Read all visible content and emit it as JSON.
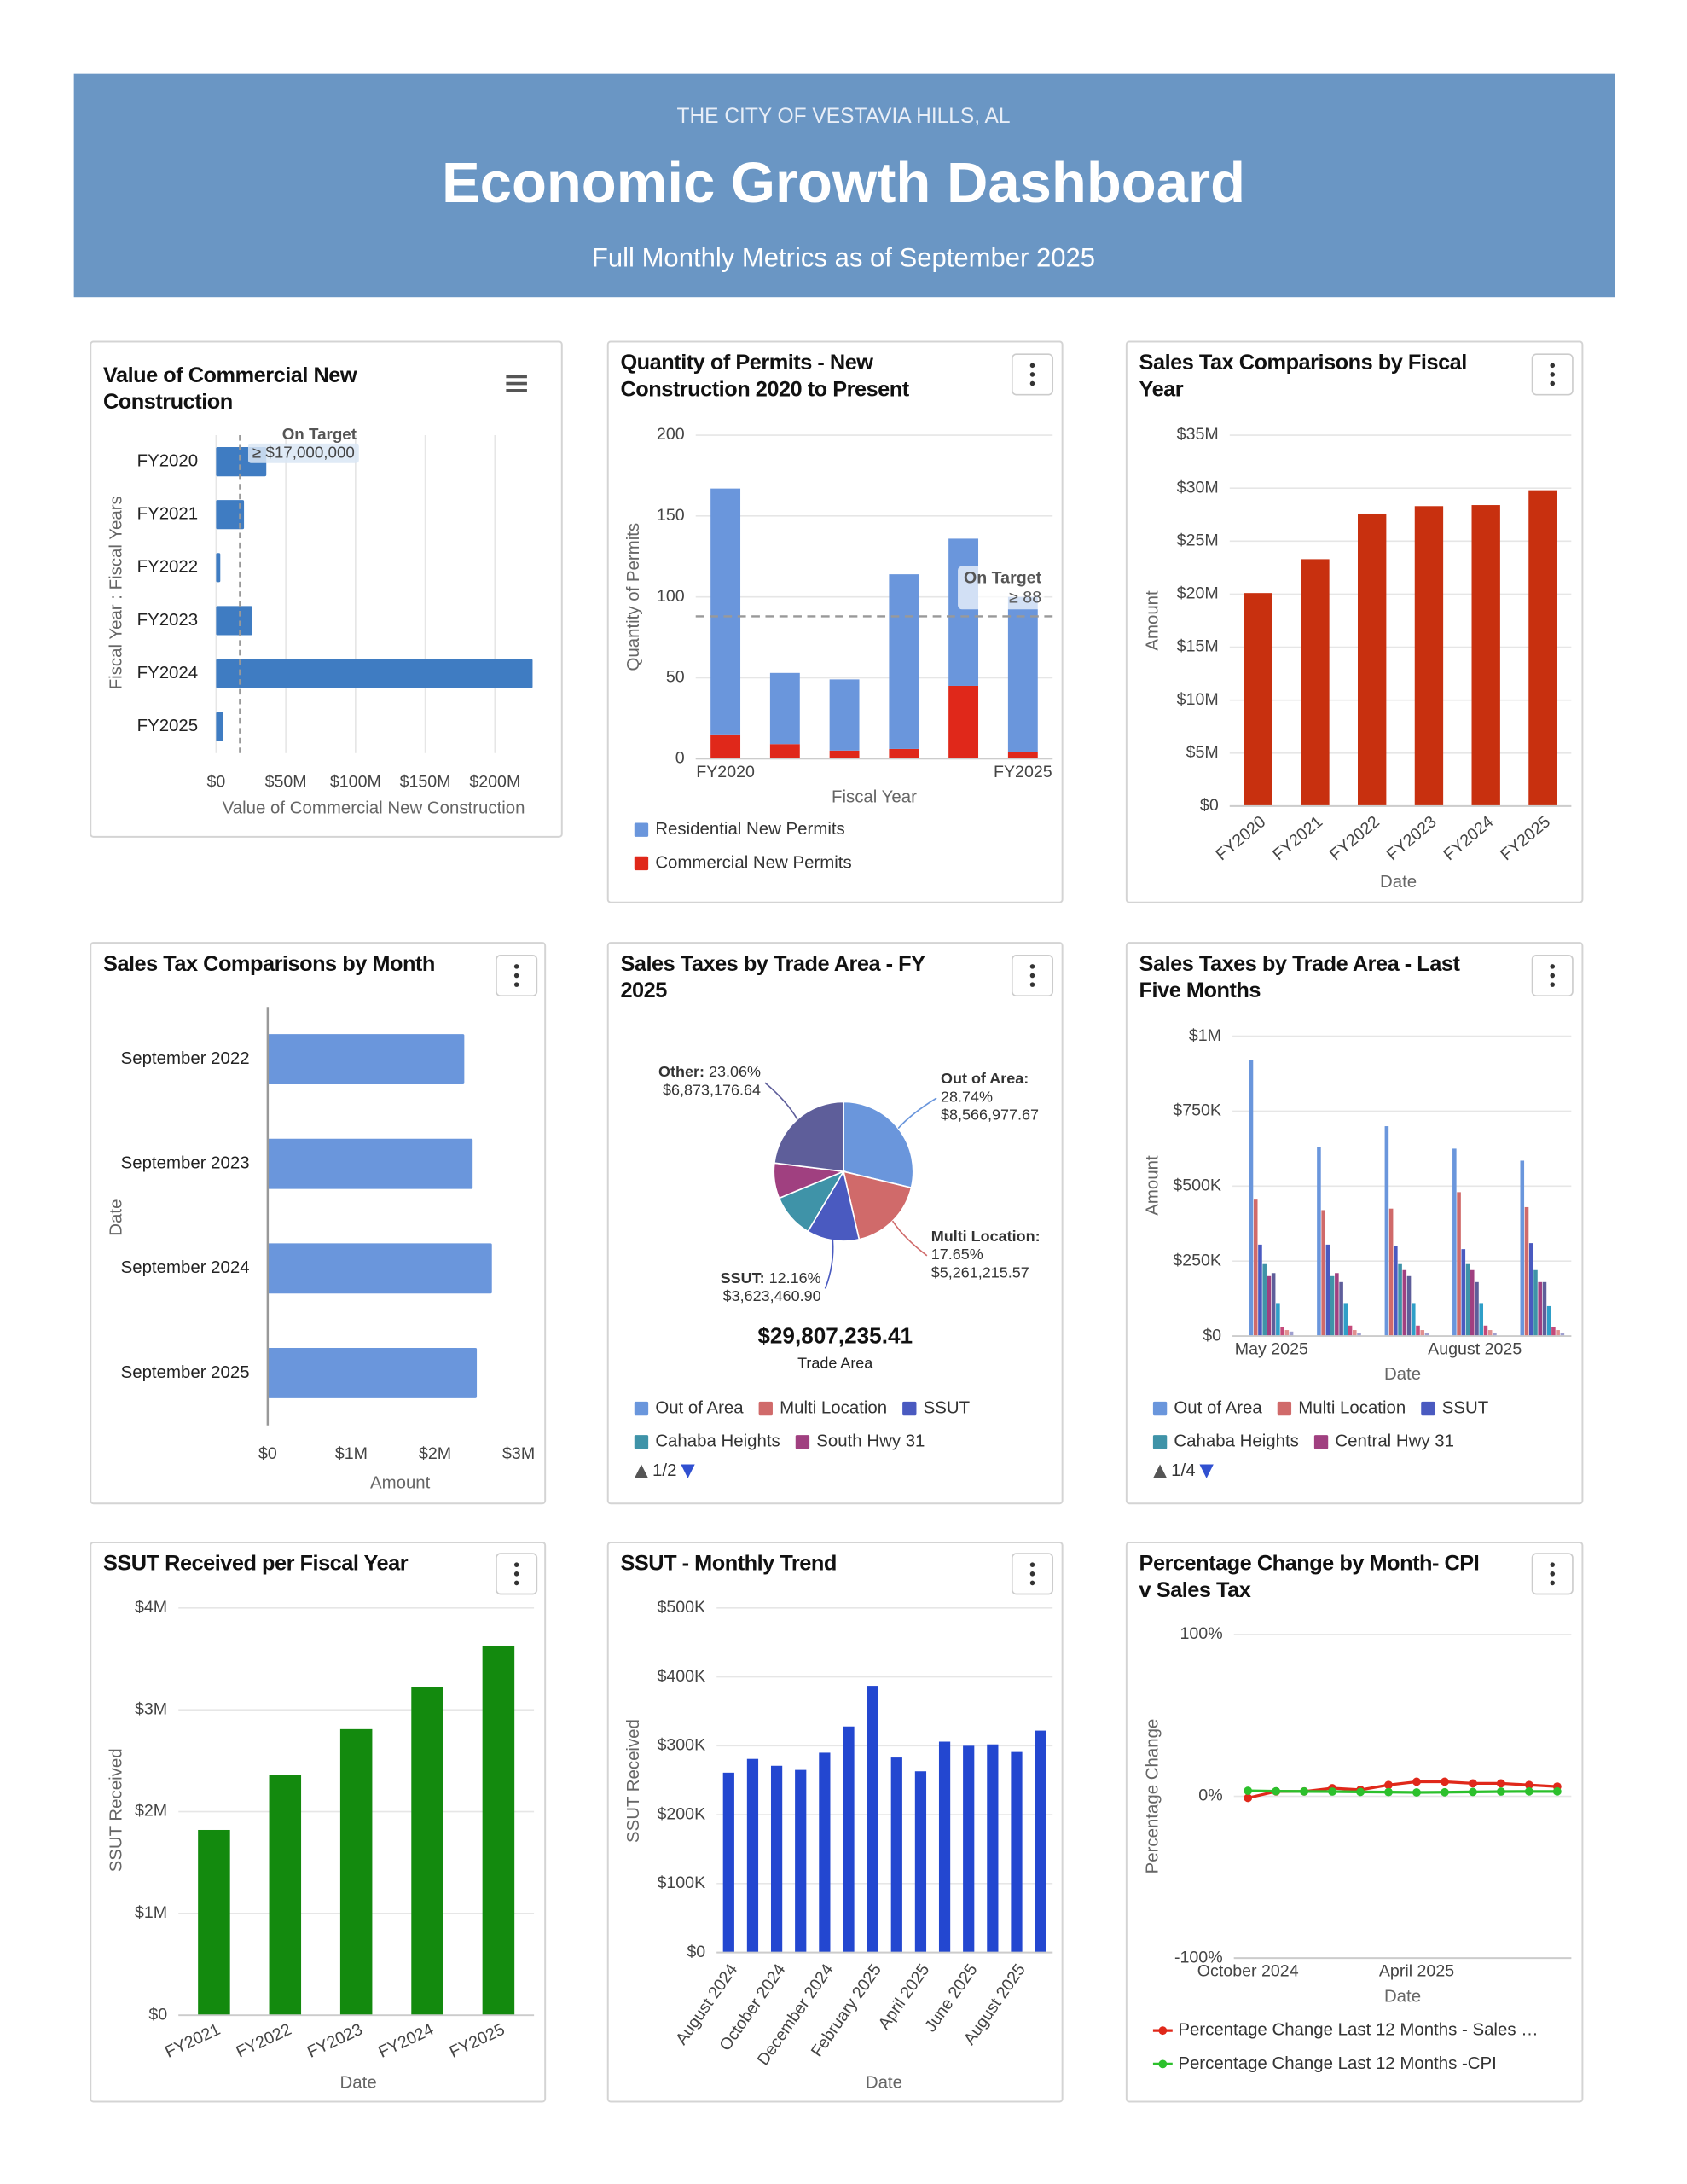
{
  "header": {
    "kicker": "THE CITY OF VESTAVIA HILLS, AL",
    "title": "Economic Growth Dashboard",
    "subtitle": "Full Monthly Metrics as of September 2025"
  },
  "chart_data": [
    {
      "type": "bar",
      "horizontal": true,
      "title": "Value of Commercial New Construction",
      "categories": [
        "FY2020",
        "FY2021",
        "FY2022",
        "FY2023",
        "FY2024",
        "FY2025"
      ],
      "values": [
        36000000,
        20000000,
        3000000,
        26000000,
        227000000,
        5000000
      ],
      "color": "#3f7cc2",
      "xlim": [
        0,
        230000000
      ],
      "xticks": [
        {
          "value": 0,
          "label": "$0"
        },
        {
          "value": 50000000,
          "label": "$50M"
        },
        {
          "value": 100000000,
          "label": "$100M"
        },
        {
          "value": 150000000,
          "label": "$150M"
        },
        {
          "value": 200000000,
          "label": "$200M"
        }
      ],
      "x_label": "Value of Commercial New Construction",
      "y_label": "Fiscal Year : Fiscal Years",
      "grid": true,
      "target": {
        "value": 17000000,
        "label": "On Target",
        "value_label": "≥ $17,000,000"
      }
    },
    {
      "type": "bar",
      "stacked": true,
      "title": "Quantity of Permits - New Construction 2020 to Present",
      "categories": [
        "FY2020",
        null,
        null,
        null,
        null,
        "FY2025"
      ],
      "series": [
        {
          "name": "Residential New Permits",
          "color": "#6a96dc",
          "values": [
            152,
            44,
            44,
            108,
            91,
            96
          ]
        },
        {
          "name": "Commercial New Permits",
          "color": "#e0281a",
          "values": [
            15,
            9,
            5,
            6,
            45,
            4
          ]
        }
      ],
      "ylim": [
        0,
        200
      ],
      "yticks": [
        0,
        50,
        100,
        150,
        200
      ],
      "x_label": "Fiscal Year",
      "y_label": "Quantity of Permits",
      "grid": true,
      "target": {
        "value": 88,
        "label": "On Target",
        "value_label": "≥ 88"
      }
    },
    {
      "type": "bar",
      "title": "Sales Tax Comparisons by Fiscal Year",
      "categories": [
        "FY2020",
        "FY2021",
        "FY2022",
        "FY2023",
        "FY2024",
        "FY2025"
      ],
      "values": [
        20100000,
        23300000,
        27600000,
        28300000,
        28400000,
        29800000
      ],
      "color": "#c8300f",
      "ylim": [
        0,
        35000000
      ],
      "yticks": [
        {
          "value": 0,
          "label": "$0"
        },
        {
          "value": 5000000,
          "label": "$5M"
        },
        {
          "value": 10000000,
          "label": "$10M"
        },
        {
          "value": 15000000,
          "label": "$15M"
        },
        {
          "value": 20000000,
          "label": "$20M"
        },
        {
          "value": 25000000,
          "label": "$25M"
        },
        {
          "value": 30000000,
          "label": "$30M"
        },
        {
          "value": 35000000,
          "label": "$35M"
        }
      ],
      "x_label": "Date",
      "y_label": "Amount",
      "grid": true
    },
    {
      "type": "bar",
      "horizontal": true,
      "title": "Sales Tax Comparisons by Month",
      "categories": [
        "September 2022",
        "September 2023",
        "September 2024",
        "September 2025"
      ],
      "values": [
        2350000,
        2450000,
        2680000,
        2500000
      ],
      "color": "#6a96dc",
      "xlim": [
        0,
        3000000
      ],
      "xticks": [
        {
          "value": 0,
          "label": "$0"
        },
        {
          "value": 1000000,
          "label": "$1M"
        },
        {
          "value": 2000000,
          "label": "$2M"
        },
        {
          "value": 3000000,
          "label": "$3M"
        }
      ],
      "x_label": "Amount",
      "y_label": "Date",
      "grid": false
    },
    {
      "type": "pie",
      "title": "Sales Taxes by Trade Area - FY 2025",
      "categories": [
        "Out of Area",
        "Multi Location",
        "SSUT",
        "Cahaba Heights",
        "South Hwy 31",
        null
      ],
      "values": [
        28.74,
        17.65,
        12.16,
        10.2,
        8.19,
        23.06
      ],
      "value_labels": [
        "28.74%",
        "17.65%",
        "12.16%",
        null,
        null,
        "23.06%"
      ],
      "label_names": [
        "Out of Area:",
        "Multi Location:",
        "SSUT:",
        null,
        null,
        "Other:"
      ],
      "amounts": [
        8566977.67,
        5261215.57,
        3623460.9,
        null,
        null,
        6873176.64
      ],
      "amount_labels": [
        "$8,566,977.67",
        "$5,261,215.57",
        "$3,623,460.90",
        null,
        null,
        "$6,873,176.64"
      ],
      "colors": [
        "#6a96dc",
        "#d06a6a",
        "#4a5ac0",
        "#3f93a8",
        "#a04080",
        "#5e5e9a"
      ],
      "total": 29807235.41,
      "total_label": "$29,807,235.41",
      "total_caption": "Trade Area",
      "legend_pager": "1/2"
    },
    {
      "type": "bar",
      "title": "Sales Taxes by Trade Area - Last Five Months",
      "categories": [
        "May 2025",
        null,
        null,
        "August 2025",
        null
      ],
      "series": [
        {
          "name": "Out of Area",
          "color": "#6a96dc",
          "values": [
            920000,
            630000,
            700000,
            625000,
            585000
          ]
        },
        {
          "name": "Multi Location",
          "color": "#d06a6a",
          "values": [
            455000,
            420000,
            425000,
            480000,
            430000
          ]
        },
        {
          "name": "SSUT",
          "color": "#4a5ac0",
          "values": [
            305000,
            305000,
            300000,
            290000,
            310000
          ]
        },
        {
          "name": "Cahaba Heights",
          "color": "#3f93a8",
          "values": [
            240000,
            200000,
            240000,
            240000,
            220000
          ]
        },
        {
          "name": "Central Hwy 31",
          "color": "#a04080",
          "values": [
            200000,
            210000,
            220000,
            220000,
            180000
          ]
        },
        {
          "name": null,
          "color": "#5e5e9a",
          "values": [
            210000,
            180000,
            200000,
            180000,
            180000
          ]
        },
        {
          "name": null,
          "color": "#2f9fc8",
          "values": [
            110000,
            110000,
            110000,
            110000,
            100000
          ]
        },
        {
          "name": null,
          "color": "#c44a7a",
          "values": [
            30000,
            35000,
            35000,
            35000,
            30000
          ]
        },
        {
          "name": null,
          "color": "#e09090",
          "values": [
            20000,
            20000,
            20000,
            20000,
            20000
          ]
        },
        {
          "name": null,
          "color": "#a0a0d0",
          "values": [
            15000,
            10000,
            10000,
            10000,
            10000
          ]
        }
      ],
      "ylim": [
        0,
        1000000
      ],
      "yticks": [
        {
          "value": 0,
          "label": "$0"
        },
        {
          "value": 250000,
          "label": "$250K"
        },
        {
          "value": 500000,
          "label": "$500K"
        },
        {
          "value": 750000,
          "label": "$750K"
        },
        {
          "value": 1000000,
          "label": "$1M"
        }
      ],
      "x_label": "Date",
      "y_label": "Amount",
      "grid": true,
      "legend_pager": "1/4"
    },
    {
      "type": "bar",
      "title": "SSUT Received per Fiscal Year",
      "categories": [
        "FY2021",
        "FY2022",
        "FY2023",
        "FY2024",
        "FY2025"
      ],
      "values": [
        1820000,
        2360000,
        2810000,
        3220000,
        3630000
      ],
      "color": "#138a0e",
      "ylim": [
        0,
        4000000
      ],
      "yticks": [
        {
          "value": 0,
          "label": "$0"
        },
        {
          "value": 1000000,
          "label": "$1M"
        },
        {
          "value": 2000000,
          "label": "$2M"
        },
        {
          "value": 3000000,
          "label": "$3M"
        },
        {
          "value": 4000000,
          "label": "$4M"
        }
      ],
      "x_label": "Date",
      "y_label": "SSUT Received",
      "grid": true
    },
    {
      "type": "bar",
      "title": "SSUT - Monthly Trend",
      "categories": [
        "August 2024",
        null,
        "October 2024",
        null,
        "December 2024",
        null,
        "February 2025",
        null,
        "April 2025",
        null,
        "June 2025",
        null,
        "August 2025",
        null
      ],
      "values": [
        261000,
        281000,
        271000,
        265000,
        290000,
        328000,
        387000,
        283000,
        263000,
        306000,
        300000,
        302000,
        291000,
        322000
      ],
      "color": "#2347d0",
      "ylim": [
        0,
        500000
      ],
      "yticks": [
        {
          "value": 0,
          "label": "$0"
        },
        {
          "value": 100000,
          "label": "$100K"
        },
        {
          "value": 200000,
          "label": "$200K"
        },
        {
          "value": 300000,
          "label": "$300K"
        },
        {
          "value": 400000,
          "label": "$400K"
        },
        {
          "value": 500000,
          "label": "$500K"
        }
      ],
      "x_label": "Date",
      "y_label": "SSUT Received",
      "grid": true
    },
    {
      "type": "line",
      "title": "Percentage Change by Month- CPI v Sales Tax",
      "categories": [
        "October 2024",
        null,
        null,
        null,
        null,
        null,
        "April 2025",
        null,
        null,
        null,
        null,
        null
      ],
      "series": [
        {
          "name": "Percentage Change Last 12 Months - Sales …",
          "color": "#e0281a",
          "values": [
            -1,
            3,
            3,
            5,
            4,
            7,
            9,
            9,
            8,
            8,
            7,
            6
          ]
        },
        {
          "name": "Percentage Change Last 12 Months -CPI",
          "color": "#2cc02c",
          "values": [
            3.4,
            3.1,
            3.0,
            2.9,
            2.7,
            2.6,
            2.4,
            2.5,
            2.7,
            2.9,
            3.0,
            3.0
          ]
        }
      ],
      "ylim": [
        -100,
        100
      ],
      "yticks": [
        {
          "value": -100,
          "label": "-100%"
        },
        {
          "value": 0,
          "label": "0%"
        },
        {
          "value": 100,
          "label": "100%"
        }
      ],
      "x_label": "Date",
      "y_label": "Percentage Change",
      "grid": true
    }
  ]
}
